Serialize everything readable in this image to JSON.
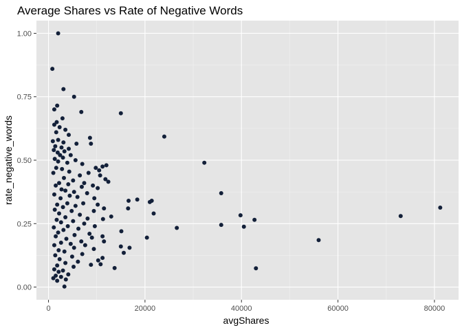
{
  "chart_data": {
    "type": "scatter",
    "title": "Average Shares vs Rate of Negative Words",
    "xlabel": "avgShares",
    "ylabel": "rate_negative_words",
    "xlim": [
      -2500,
      85000
    ],
    "ylim": [
      -0.05,
      1.05
    ],
    "x_ticks": [
      0,
      20000,
      40000,
      60000,
      80000
    ],
    "x_tick_labels": [
      "0",
      "20000",
      "40000",
      "60000",
      "80000"
    ],
    "y_ticks": [
      0.0,
      0.25,
      0.5,
      0.75,
      1.0
    ],
    "y_tick_labels": [
      "0.00",
      "0.25",
      "0.50",
      "0.75",
      "1.00"
    ],
    "grid": true,
    "colors": {
      "panel": "#e5e5e5",
      "grid_major": "#ffffff",
      "grid_minor": "#f2f2f2",
      "point": "#132039"
    },
    "points": [
      [
        2000,
        1.0
      ],
      [
        800,
        0.86
      ],
      [
        3100,
        0.78
      ],
      [
        5300,
        0.75
      ],
      [
        1800,
        0.715
      ],
      [
        1200,
        0.7
      ],
      [
        6800,
        0.69
      ],
      [
        15000,
        0.685
      ],
      [
        2900,
        0.665
      ],
      [
        1700,
        0.65
      ],
      [
        1200,
        0.64
      ],
      [
        2300,
        0.63
      ],
      [
        3500,
        0.62
      ],
      [
        1600,
        0.61
      ],
      [
        4200,
        0.6
      ],
      [
        24000,
        0.593
      ],
      [
        8600,
        0.588
      ],
      [
        2000,
        0.58
      ],
      [
        900,
        0.575
      ],
      [
        8800,
        0.565
      ],
      [
        3100,
        0.57
      ],
      [
        5800,
        0.565
      ],
      [
        1400,
        0.555
      ],
      [
        2700,
        0.55
      ],
      [
        4200,
        0.545
      ],
      [
        1100,
        0.54
      ],
      [
        3300,
        0.535
      ],
      [
        1900,
        0.53
      ],
      [
        2400,
        0.52
      ],
      [
        4600,
        0.52
      ],
      [
        3000,
        0.51
      ],
      [
        1300,
        0.505
      ],
      [
        5600,
        0.5
      ],
      [
        2000,
        0.495
      ],
      [
        3900,
        0.49
      ],
      [
        32300,
        0.49
      ],
      [
        7000,
        0.485
      ],
      [
        12000,
        0.48
      ],
      [
        11200,
        0.475
      ],
      [
        9800,
        0.47
      ],
      [
        1600,
        0.47
      ],
      [
        2800,
        0.465
      ],
      [
        10500,
        0.46
      ],
      [
        4300,
        0.455
      ],
      [
        8300,
        0.45
      ],
      [
        1000,
        0.45
      ],
      [
        6500,
        0.44
      ],
      [
        10700,
        0.44
      ],
      [
        3200,
        0.43
      ],
      [
        11800,
        0.425
      ],
      [
        5100,
        0.42
      ],
      [
        12400,
        0.415
      ],
      [
        2200,
        0.41
      ],
      [
        7400,
        0.41
      ],
      [
        4100,
        0.405
      ],
      [
        9200,
        0.4
      ],
      [
        1500,
        0.4
      ],
      [
        6900,
        0.395
      ],
      [
        10200,
        0.39
      ],
      [
        2700,
        0.385
      ],
      [
        3500,
        0.38
      ],
      [
        5300,
        0.375
      ],
      [
        35800,
        0.37
      ],
      [
        8000,
        0.37
      ],
      [
        1200,
        0.365
      ],
      [
        4400,
        0.36
      ],
      [
        6000,
        0.355
      ],
      [
        2500,
        0.35
      ],
      [
        9500,
        0.35
      ],
      [
        18400,
        0.345
      ],
      [
        16600,
        0.34
      ],
      [
        21400,
        0.34
      ],
      [
        21000,
        0.335
      ],
      [
        3900,
        0.33
      ],
      [
        7200,
        0.33
      ],
      [
        1800,
        0.325
      ],
      [
        10200,
        0.325
      ],
      [
        5600,
        0.32
      ],
      [
        3000,
        0.315
      ],
      [
        16500,
        0.31
      ],
      [
        81200,
        0.313
      ],
      [
        11500,
        0.31
      ],
      [
        9400,
        0.3
      ],
      [
        1300,
        0.305
      ],
      [
        4800,
        0.3
      ],
      [
        21800,
        0.29
      ],
      [
        2200,
        0.29
      ],
      [
        6500,
        0.285
      ],
      [
        39800,
        0.283
      ],
      [
        73000,
        0.28
      ],
      [
        13000,
        0.278
      ],
      [
        3500,
        0.275
      ],
      [
        8100,
        0.27
      ],
      [
        11300,
        0.268
      ],
      [
        42700,
        0.265
      ],
      [
        1700,
        0.265
      ],
      [
        5100,
        0.26
      ],
      [
        2600,
        0.255
      ],
      [
        7400,
        0.25
      ],
      [
        35800,
        0.245
      ],
      [
        40500,
        0.238
      ],
      [
        26600,
        0.233
      ],
      [
        4000,
        0.24
      ],
      [
        9600,
        0.24
      ],
      [
        1100,
        0.235
      ],
      [
        6200,
        0.23
      ],
      [
        3100,
        0.225
      ],
      [
        15100,
        0.22
      ],
      [
        2000,
        0.215
      ],
      [
        8500,
        0.21
      ],
      [
        5400,
        0.205
      ],
      [
        11200,
        0.2
      ],
      [
        20400,
        0.195
      ],
      [
        1500,
        0.2
      ],
      [
        9000,
        0.195
      ],
      [
        3700,
        0.19
      ],
      [
        56000,
        0.185
      ],
      [
        11500,
        0.18
      ],
      [
        6800,
        0.18
      ],
      [
        2600,
        0.175
      ],
      [
        4600,
        0.17
      ],
      [
        7600,
        0.165
      ],
      [
        1200,
        0.165
      ],
      [
        15000,
        0.16
      ],
      [
        16800,
        0.155
      ],
      [
        5300,
        0.155
      ],
      [
        9400,
        0.15
      ],
      [
        2100,
        0.145
      ],
      [
        3300,
        0.14
      ],
      [
        15600,
        0.135
      ],
      [
        7000,
        0.13
      ],
      [
        1400,
        0.125
      ],
      [
        4900,
        0.12
      ],
      [
        11200,
        0.115
      ],
      [
        2300,
        0.11
      ],
      [
        10300,
        0.105
      ],
      [
        6100,
        0.1
      ],
      [
        3500,
        0.095
      ],
      [
        10800,
        0.09
      ],
      [
        8800,
        0.088
      ],
      [
        1800,
        0.085
      ],
      [
        5200,
        0.08
      ],
      [
        13700,
        0.075
      ],
      [
        43000,
        0.074
      ],
      [
        1200,
        0.07
      ],
      [
        3000,
        0.065
      ],
      [
        2100,
        0.06
      ],
      [
        4100,
        0.05
      ],
      [
        1500,
        0.045
      ],
      [
        2600,
        0.04
      ],
      [
        1000,
        0.035
      ],
      [
        3600,
        0.03
      ],
      [
        1800,
        0.025
      ],
      [
        3300,
        0.002
      ]
    ]
  }
}
